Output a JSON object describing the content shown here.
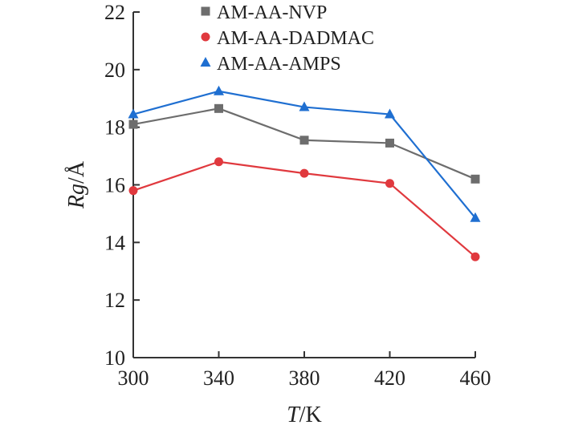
{
  "chart_data": {
    "type": "line",
    "x": [
      300,
      340,
      380,
      420,
      460
    ],
    "xticks": [
      "300",
      "340",
      "380",
      "420",
      "460"
    ],
    "yticks": [
      "10",
      "12",
      "14",
      "16",
      "18",
      "20",
      "22"
    ],
    "xlim": [
      300,
      460
    ],
    "ylim": [
      10,
      22
    ],
    "xlabel": {
      "var": "T",
      "unit": "/K"
    },
    "ylabel": {
      "var": "Rg",
      "unit": "/Å"
    },
    "grid": false,
    "legend_position": "top",
    "series": [
      {
        "name": "AM-AA-NVP",
        "color": "#6d6d6d",
        "marker": "square",
        "values": [
          18.1,
          18.65,
          17.55,
          17.45,
          16.2
        ]
      },
      {
        "name": "AM-AA-DADMAC",
        "color": "#e0393e",
        "marker": "circle",
        "values": [
          15.8,
          16.8,
          16.4,
          16.05,
          13.5
        ]
      },
      {
        "name": "AM-AA-AMPS",
        "color": "#1f6fd1",
        "marker": "triangle",
        "values": [
          18.45,
          19.25,
          18.7,
          18.45,
          14.85
        ]
      }
    ]
  }
}
